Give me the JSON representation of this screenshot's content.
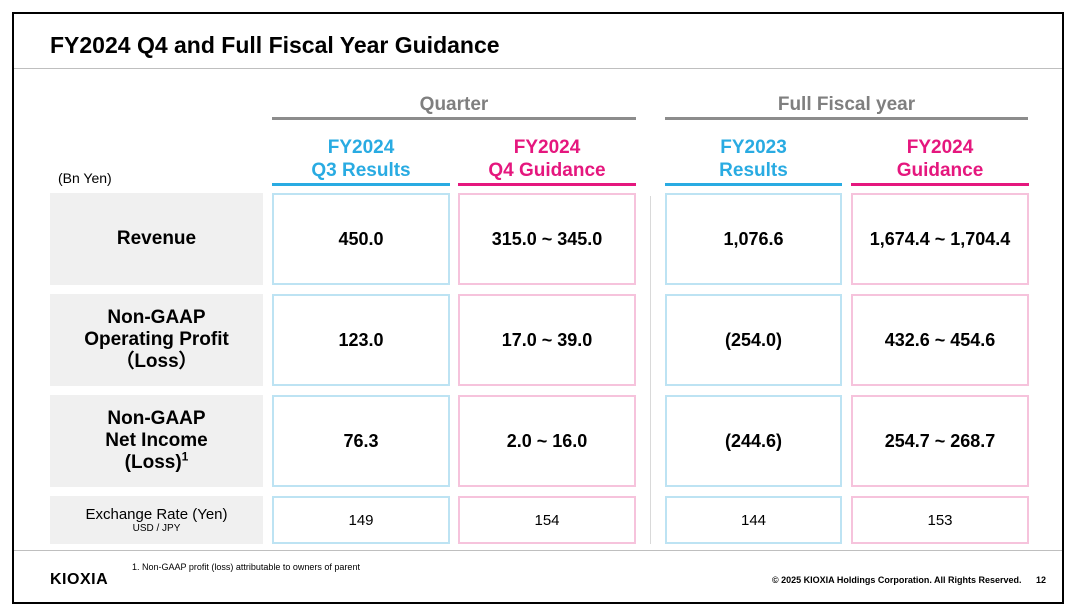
{
  "title": "FY2024 Q4 and Full Fiscal Year Guidance",
  "unit": "(Bn Yen)",
  "groups": {
    "quarter": "Quarter",
    "full_year": "Full Fiscal year"
  },
  "columns": [
    {
      "line1": "FY2024",
      "line2": "Q3 Results",
      "color": "#29abe2"
    },
    {
      "line1": "FY2024",
      "line2": "Q4 Guidance",
      "color": "#e5177e"
    },
    {
      "line1": "FY2023",
      "line2": "Results",
      "color": "#29abe2"
    },
    {
      "line1": "FY2024",
      "line2": "Guidance",
      "color": "#e5177e"
    }
  ],
  "rows": [
    {
      "label_lines": [
        "Revenue"
      ],
      "values": [
        "450.0",
        "315.0 ~ 345.0",
        "1,076.6",
        "1,674.4 ~ 1,704.4"
      ]
    },
    {
      "label_lines": [
        "Non-GAAP",
        "Operating Profit",
        "（Loss）"
      ],
      "values": [
        "123.0",
        "17.0 ~ 39.0",
        "(254.0)",
        "432.6 ~ 454.6"
      ]
    },
    {
      "label_lines": [
        "Non-GAAP",
        "Net Income",
        "(Loss)"
      ],
      "label_sup": "1",
      "values": [
        "76.3",
        "2.0 ~ 16.0",
        "(244.6)",
        "254.7 ~ 268.7"
      ]
    },
    {
      "label_lines": [
        "Exchange Rate (Yen)"
      ],
      "label_sub": "USD / JPY",
      "values": [
        "149",
        "154",
        "144",
        "153"
      ]
    }
  ],
  "footnote": "1. Non-GAAP profit (loss) attributable to owners of parent",
  "logo": "KIOXIA",
  "copyright": "© 2025 KIOXIA Holdings Corporation. All Rights Reserved.",
  "page_number": "12"
}
